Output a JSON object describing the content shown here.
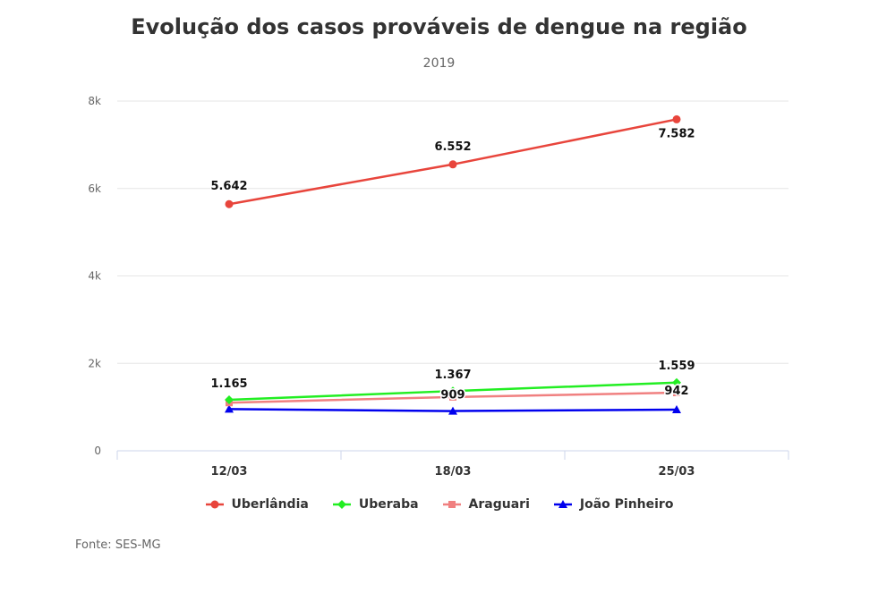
{
  "chart_data": {
    "type": "line",
    "title": "Evolução dos casos prováveis de dengue na região",
    "subtitle": "2019",
    "categories": [
      "12/03",
      "18/03",
      "25/03"
    ],
    "ylim": [
      0,
      8000
    ],
    "yticks": [
      0,
      2000,
      4000,
      6000,
      8000
    ],
    "ytick_labels": [
      "0",
      "2k",
      "4k",
      "6k",
      "8k"
    ],
    "grid": true,
    "legend_position": "bottom",
    "series": [
      {
        "name": "Uberlândia",
        "values": [
          5642,
          6552,
          7582
        ],
        "labels": [
          "5.642",
          "6.552",
          "7.582"
        ],
        "color": "#e8453c",
        "marker": "circle"
      },
      {
        "name": "Uberaba",
        "values": [
          1165,
          1367,
          1559
        ],
        "labels": [
          "1.165",
          "1.367",
          "1.559"
        ],
        "color": "#22ee22",
        "marker": "diamond"
      },
      {
        "name": "Araguari",
        "values": [
          1100,
          1230,
          1330
        ],
        "labels": [
          "",
          "",
          ""
        ],
        "color": "#f08080",
        "marker": "square"
      },
      {
        "name": "João Pinheiro",
        "values": [
          955,
          909,
          942
        ],
        "labels": [
          "",
          "909",
          "942"
        ],
        "color": "#0000ee",
        "marker": "triangle"
      }
    ],
    "source": "Fonte: SES-MG"
  }
}
